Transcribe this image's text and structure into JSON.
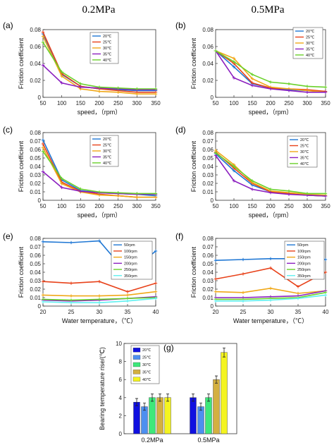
{
  "header": {
    "col1_title": "0.2MPa",
    "col2_title": "0.5MPa"
  },
  "colors": {
    "c1": "#1f77d4",
    "c2": "#e8421a",
    "c3": "#f0a818",
    "c4": "#8b1fbf",
    "c5": "#6ad12a",
    "c6": "#5ff0f0",
    "b1": "#1010e0",
    "b2": "#4d8ff0",
    "b3": "#3ee87a",
    "b4": "#d4b040",
    "b5": "#f4f420"
  },
  "chart_data": [
    {
      "id": "a",
      "panel_label": "(a)",
      "type": "line",
      "x": [
        50,
        100,
        150,
        200,
        250,
        300,
        350
      ],
      "xlim": [
        50,
        350
      ],
      "ylim": [
        0,
        0.08
      ],
      "xticks": [
        "50",
        "100",
        "150",
        "200",
        "250",
        "300",
        "350"
      ],
      "yticks": [
        "0",
        "0.02",
        "0.04",
        "0.06",
        "0.08"
      ],
      "xlabel": "speed，（rpm）",
      "ylabel": "Friction coefficient",
      "legend": "top-right",
      "series": [
        {
          "name": "20℃",
          "color": "#1f77d4",
          "values": [
            0.075,
            0.027,
            0.013,
            0.01,
            0.009,
            0.008,
            0.008
          ]
        },
        {
          "name": "25℃",
          "color": "#e8421a",
          "values": [
            0.077,
            0.028,
            0.013,
            0.01,
            0.008,
            0.006,
            0.006
          ]
        },
        {
          "name": "30℃",
          "color": "#f0a818",
          "values": [
            0.072,
            0.025,
            0.01,
            0.007,
            0.006,
            0.004,
            0.004
          ]
        },
        {
          "name": "35℃",
          "color": "#8b1fbf",
          "values": [
            0.038,
            0.017,
            0.012,
            0.011,
            0.01,
            0.009,
            0.009
          ]
        },
        {
          "name": "40℃",
          "color": "#6ad12a",
          "values": [
            0.065,
            0.03,
            0.016,
            0.012,
            0.011,
            0.01,
            0.01
          ]
        }
      ]
    },
    {
      "id": "b",
      "panel_label": "(b)",
      "type": "line",
      "x": [
        50,
        100,
        150,
        200,
        250,
        300,
        350
      ],
      "xlim": [
        50,
        350
      ],
      "ylim": [
        0,
        0.08
      ],
      "xticks": [
        "50",
        "100",
        "150",
        "200",
        "250",
        "300",
        "350"
      ],
      "yticks": [
        "0",
        "0.02",
        "0.04",
        "0.06",
        "0.08"
      ],
      "xlabel": "speed，（rpm）",
      "ylabel": "Friction coefficient",
      "legend": "top-right",
      "series": [
        {
          "name": "20℃",
          "color": "#1f77d4",
          "values": [
            0.055,
            0.036,
            0.016,
            0.011,
            0.009,
            0.008,
            0.007
          ]
        },
        {
          "name": "25℃",
          "color": "#e8421a",
          "values": [
            0.055,
            0.04,
            0.017,
            0.011,
            0.01,
            0.009,
            0.007
          ]
        },
        {
          "name": "30℃",
          "color": "#f0a818",
          "values": [
            0.055,
            0.046,
            0.022,
            0.012,
            0.01,
            0.008,
            0.006
          ]
        },
        {
          "name": "35℃",
          "color": "#8b1fbf",
          "values": [
            0.055,
            0.023,
            0.014,
            0.01,
            0.008,
            0.006,
            0.006
          ]
        },
        {
          "name": "40℃",
          "color": "#6ad12a",
          "values": [
            0.055,
            0.042,
            0.027,
            0.018,
            0.016,
            0.013,
            0.012
          ]
        }
      ]
    },
    {
      "id": "c",
      "panel_label": "(c)",
      "type": "line",
      "x": [
        50,
        100,
        150,
        200,
        250,
        300,
        350
      ],
      "xlim": [
        50,
        350
      ],
      "ylim": [
        0,
        0.09
      ],
      "xticks": [
        "50",
        "100",
        "150",
        "200",
        "250",
        "300",
        "350"
      ],
      "yticks": [
        "0",
        "0.01",
        "0.02",
        "0.03",
        "0.04",
        "0.05",
        "0.06",
        "0.07",
        "0.08"
      ],
      "xlabel": "speed，（rpm）",
      "ylabel": "Friction coefficient",
      "legend": "top-right",
      "series": [
        {
          "name": "20℃",
          "color": "#1f77d4",
          "values": [
            0.08,
            0.027,
            0.013,
            0.01,
            0.009,
            0.008,
            0.006
          ]
        },
        {
          "name": "25℃",
          "color": "#e8421a",
          "values": [
            0.075,
            0.024,
            0.012,
            0.008,
            0.006,
            0.004,
            0.004
          ]
        },
        {
          "name": "30℃",
          "color": "#f0a818",
          "values": [
            0.07,
            0.022,
            0.011,
            0.007,
            0.006,
            0.004,
            0.004
          ]
        },
        {
          "name": "35℃",
          "color": "#8b1fbf",
          "values": [
            0.038,
            0.017,
            0.012,
            0.01,
            0.009,
            0.008,
            0.008
          ]
        },
        {
          "name": "40℃",
          "color": "#6ad12a",
          "values": [
            0.065,
            0.029,
            0.015,
            0.011,
            0.01,
            0.009,
            0.009
          ]
        }
      ]
    },
    {
      "id": "d",
      "panel_label": "(d)",
      "type": "line",
      "x": [
        50,
        100,
        150,
        200,
        250,
        300,
        350
      ],
      "xlim": [
        50,
        350
      ],
      "ylim": [
        0,
        0.08
      ],
      "xticks": [
        "50",
        "100",
        "150",
        "200",
        "250",
        "300",
        "350"
      ],
      "yticks": [
        "0",
        "0.01",
        "0.02",
        "0.03",
        "0.04",
        "0.05",
        "0.06",
        "0.07",
        "0.08"
      ],
      "xlabel": "speed，（rpm）",
      "ylabel": "Friction coefficient",
      "legend": "top-right",
      "series": [
        {
          "name": "20℃",
          "color": "#1f77d4",
          "values": [
            0.055,
            0.035,
            0.018,
            0.01,
            0.008,
            0.006,
            0.005
          ]
        },
        {
          "name": "25℃",
          "color": "#e8421a",
          "values": [
            0.057,
            0.038,
            0.02,
            0.01,
            0.008,
            0.006,
            0.005
          ]
        },
        {
          "name": "30℃",
          "color": "#f0a818",
          "values": [
            0.059,
            0.042,
            0.021,
            0.011,
            0.009,
            0.007,
            0.006
          ]
        },
        {
          "name": "35℃",
          "color": "#8b1fbf",
          "values": [
            0.053,
            0.023,
            0.013,
            0.009,
            0.007,
            0.006,
            0.005
          ]
        },
        {
          "name": "40℃",
          "color": "#6ad12a",
          "values": [
            0.056,
            0.04,
            0.023,
            0.013,
            0.011,
            0.008,
            0.008
          ]
        }
      ]
    },
    {
      "id": "e",
      "panel_label": "(e)",
      "type": "line",
      "x": [
        20,
        25,
        30,
        35,
        40
      ],
      "xlim": [
        20,
        40
      ],
      "ylim": [
        0,
        0.08
      ],
      "xticks": [
        "20",
        "25",
        "30",
        "35",
        "40"
      ],
      "yticks": [
        "0",
        "0.01",
        "0.02",
        "0.03",
        "0.04",
        "0.05",
        "0.06",
        "0.07",
        "0.08"
      ],
      "xlabel": "Water temperature，（℃）",
      "ylabel": "Friction coefficient",
      "legend": "top-right",
      "series": [
        {
          "name": "50rpm",
          "color": "#1f77d4",
          "values": [
            0.076,
            0.075,
            0.077,
            0.038,
            0.065
          ]
        },
        {
          "name": "100rpm",
          "color": "#e8421a",
          "values": [
            0.029,
            0.027,
            0.029,
            0.017,
            0.027
          ]
        },
        {
          "name": "150rpm",
          "color": "#f0a818",
          "values": [
            0.013,
            0.012,
            0.012,
            0.013,
            0.017
          ]
        },
        {
          "name": "200rpm",
          "color": "#8b1fbf",
          "values": [
            0.007,
            0.006,
            0.007,
            0.009,
            0.011
          ]
        },
        {
          "name": "250rpm",
          "color": "#6ad12a",
          "values": [
            0.008,
            0.007,
            0.008,
            0.009,
            0.01
          ]
        },
        {
          "name": "350rpm",
          "color": "#5ff0f0",
          "values": [
            0.005,
            0.004,
            0.004,
            0.006,
            0.009
          ]
        }
      ]
    },
    {
      "id": "f",
      "panel_label": "(f)",
      "type": "line",
      "x": [
        20,
        25,
        30,
        35,
        40
      ],
      "xlim": [
        20,
        40
      ],
      "ylim": [
        0,
        0.08
      ],
      "xticks": [
        "20",
        "25",
        "30",
        "35",
        "40"
      ],
      "yticks": [
        "0",
        "0.01",
        "0.02",
        "0.03",
        "0.04",
        "0.05",
        "0.06",
        "0.07",
        "0.08"
      ],
      "xlabel": "Water temperature，（℃）",
      "ylabel": "Friction coefficient",
      "legend": "top-right",
      "series": [
        {
          "name": "50rpm",
          "color": "#1f77d4",
          "values": [
            0.054,
            0.055,
            0.056,
            0.056,
            0.055
          ]
        },
        {
          "name": "100rpm",
          "color": "#e8421a",
          "values": [
            0.032,
            0.038,
            0.045,
            0.023,
            0.04
          ]
        },
        {
          "name": "150rpm",
          "color": "#f0a818",
          "values": [
            0.017,
            0.016,
            0.021,
            0.015,
            0.018
          ]
        },
        {
          "name": "200rpm",
          "color": "#8b1fbf",
          "values": [
            0.01,
            0.01,
            0.011,
            0.012,
            0.018
          ]
        },
        {
          "name": "250rpm",
          "color": "#6ad12a",
          "values": [
            0.008,
            0.008,
            0.009,
            0.01,
            0.016
          ]
        },
        {
          "name": "350rpm",
          "color": "#5ff0f0",
          "values": [
            0.006,
            0.006,
            0.007,
            0.009,
            0.013
          ]
        }
      ]
    },
    {
      "id": "g",
      "panel_label": "(g)",
      "type": "bar",
      "categories": [
        "0.2MPa",
        "0.5MPa"
      ],
      "ylim": [
        0,
        10
      ],
      "yticks": [
        "0",
        "2",
        "4",
        "6",
        "8",
        "10"
      ],
      "ylabel": "Bearing temperature rise/(℃)",
      "legend": "top-left",
      "series": [
        {
          "name": "20℃",
          "color": "#1010e0",
          "values": [
            3.5,
            4.0
          ],
          "err": [
            0.4,
            0.4
          ]
        },
        {
          "name": "25℃",
          "color": "#4d8ff0",
          "values": [
            3.0,
            3.0
          ],
          "err": [
            0.4,
            0.4
          ]
        },
        {
          "name": "30℃",
          "color": "#3ee87a",
          "values": [
            4.0,
            4.0
          ],
          "err": [
            0.4,
            0.4
          ]
        },
        {
          "name": "35℃",
          "color": "#d4b040",
          "values": [
            4.0,
            6.0
          ],
          "err": [
            0.4,
            0.4
          ]
        },
        {
          "name": "40℃",
          "color": "#f4f420",
          "values": [
            4.0,
            9.0
          ],
          "err": [
            0.4,
            0.5
          ]
        }
      ]
    }
  ]
}
